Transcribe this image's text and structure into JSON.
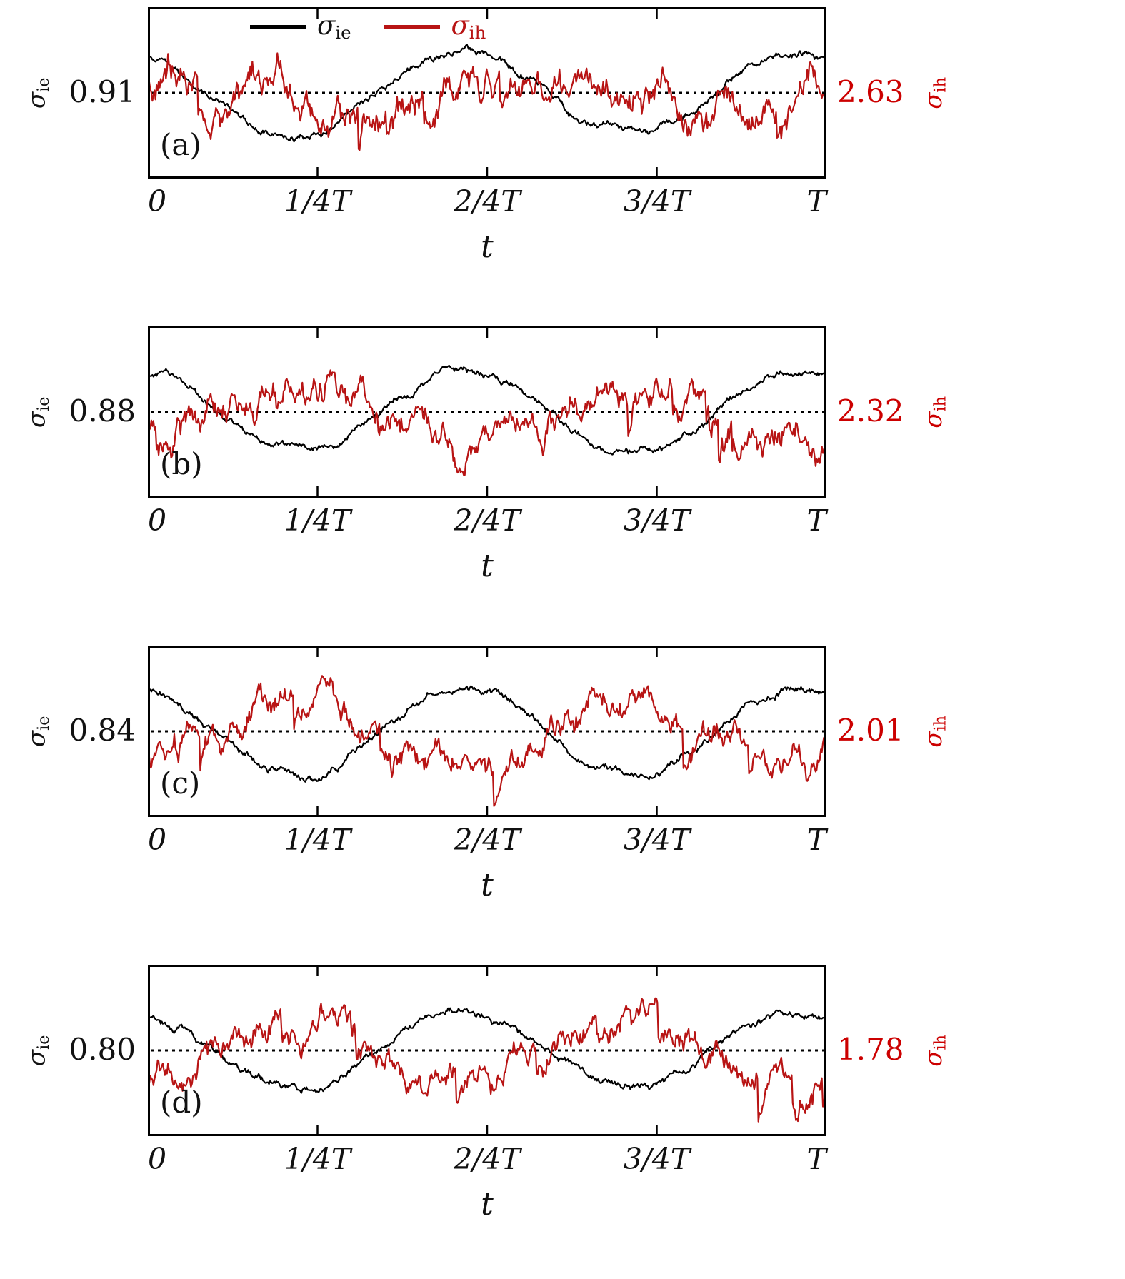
{
  "figure": {
    "colors": {
      "black": "#000000",
      "red_text": "#cc0000",
      "red_curve": "#b81414"
    },
    "legend": {
      "items": [
        {
          "label_base": "σ",
          "label_sub": "ie",
          "color": "#000000"
        },
        {
          "label_base": "σ",
          "label_sub": "ih",
          "color": "#b81414"
        }
      ]
    }
  },
  "chart_data": [
    {
      "type": "line",
      "panel_label": "(a)",
      "xlabel": "t",
      "x_ticks": [
        "0",
        "1/4T",
        "2/4T",
        "3/4T",
        "T"
      ],
      "x_range": [
        "0",
        "T"
      ],
      "left_axis": {
        "label_base": "σ",
        "label_sub": "ie",
        "value": "0.91"
      },
      "right_axis": {
        "label_base": "σ",
        "label_sub": "ih",
        "value": "2.63"
      },
      "reference_line": {
        "style": "dotted",
        "at_left_value": "0.91",
        "at_right_value": "2.63"
      },
      "legend_visible": true,
      "series": [
        {
          "name": "sigma_ie",
          "color": "#000000",
          "cycles": 2,
          "amp": 0.5,
          "phase": 0.45,
          "noise_step": 0.05,
          "noise_decay": 0.955,
          "jitter": 0.025,
          "spike_prob": 0,
          "spike_size": 0,
          "seed": 11
        },
        {
          "name": "sigma_ih",
          "color": "#b81414",
          "cycles": 2,
          "amp": 0.2,
          "phase": 5.5,
          "noise_step": 0.24,
          "noise_decay": 0.92,
          "jitter": 0.12,
          "spike_prob": 0.013,
          "spike_size": 0.3,
          "seed": 21
        }
      ]
    },
    {
      "type": "line",
      "panel_label": "(b)",
      "xlabel": "t",
      "x_ticks": [
        "0",
        "1/4T",
        "2/4T",
        "3/4T",
        "T"
      ],
      "x_range": [
        "0",
        "T"
      ],
      "left_axis": {
        "label_base": "σ",
        "label_sub": "ie",
        "value": "0.88"
      },
      "right_axis": {
        "label_base": "σ",
        "label_sub": "ih",
        "value": "2.32"
      },
      "reference_line": {
        "style": "dotted",
        "at_left_value": "0.88",
        "at_right_value": "2.32"
      },
      "legend_visible": false,
      "series": [
        {
          "name": "sigma_ie",
          "color": "#000000",
          "cycles": 2,
          "amp": 0.5,
          "phase": 0.45,
          "noise_step": 0.05,
          "noise_decay": 0.955,
          "jitter": 0.025,
          "spike_prob": 0,
          "spike_size": 0,
          "seed": 12
        },
        {
          "name": "sigma_ih",
          "color": "#b81414",
          "cycles": 2,
          "amp": 0.32,
          "phase": 3.59,
          "noise_step": 0.22,
          "noise_decay": 0.92,
          "jitter": 0.11,
          "spike_prob": 0.013,
          "spike_size": 0.32,
          "seed": 22
        }
      ]
    },
    {
      "type": "line",
      "panel_label": "(c)",
      "xlabel": "t",
      "x_ticks": [
        "0",
        "1/4T",
        "2/4T",
        "3/4T",
        "T"
      ],
      "x_range": [
        "0",
        "T"
      ],
      "left_axis": {
        "label_base": "σ",
        "label_sub": "ie",
        "value": "0.84"
      },
      "right_axis": {
        "label_base": "σ",
        "label_sub": "ih",
        "value": "2.01"
      },
      "reference_line": {
        "style": "dotted",
        "at_left_value": "0.84",
        "at_right_value": "2.01"
      },
      "legend_visible": false,
      "series": [
        {
          "name": "sigma_ie",
          "color": "#000000",
          "cycles": 2,
          "amp": 0.55,
          "phase": 0.45,
          "noise_step": 0.05,
          "noise_decay": 0.955,
          "jitter": 0.025,
          "spike_prob": 0,
          "spike_size": 0,
          "seed": 13
        },
        {
          "name": "sigma_ih",
          "color": "#b81414",
          "cycles": 2,
          "amp": 0.45,
          "phase": 3.59,
          "noise_step": 0.19,
          "noise_decay": 0.92,
          "jitter": 0.1,
          "spike_prob": 0.012,
          "spike_size": 0.33,
          "seed": 23
        }
      ]
    },
    {
      "type": "line",
      "panel_label": "(d)",
      "xlabel": "t",
      "x_ticks": [
        "0",
        "1/4T",
        "2/4T",
        "3/4T",
        "T"
      ],
      "x_range": [
        "0",
        "T"
      ],
      "left_axis": {
        "label_base": "σ",
        "label_sub": "ie",
        "value": "0.80"
      },
      "right_axis": {
        "label_base": "σ",
        "label_sub": "ih",
        "value": "1.78"
      },
      "reference_line": {
        "style": "dotted",
        "at_left_value": "0.80",
        "at_right_value": "1.78"
      },
      "legend_visible": false,
      "series": [
        {
          "name": "sigma_ie",
          "color": "#000000",
          "cycles": 2,
          "amp": 0.45,
          "phase": 0.45,
          "noise_step": 0.05,
          "noise_decay": 0.955,
          "jitter": 0.025,
          "spike_prob": 0,
          "spike_size": 0,
          "seed": 14
        },
        {
          "name": "sigma_ih",
          "color": "#b81414",
          "cycles": 2,
          "amp": 0.4,
          "phase": 3.59,
          "noise_step": 0.19,
          "noise_decay": 0.92,
          "jitter": 0.1,
          "spike_prob": 0.012,
          "spike_size": 0.3,
          "seed": 24
        }
      ]
    }
  ]
}
